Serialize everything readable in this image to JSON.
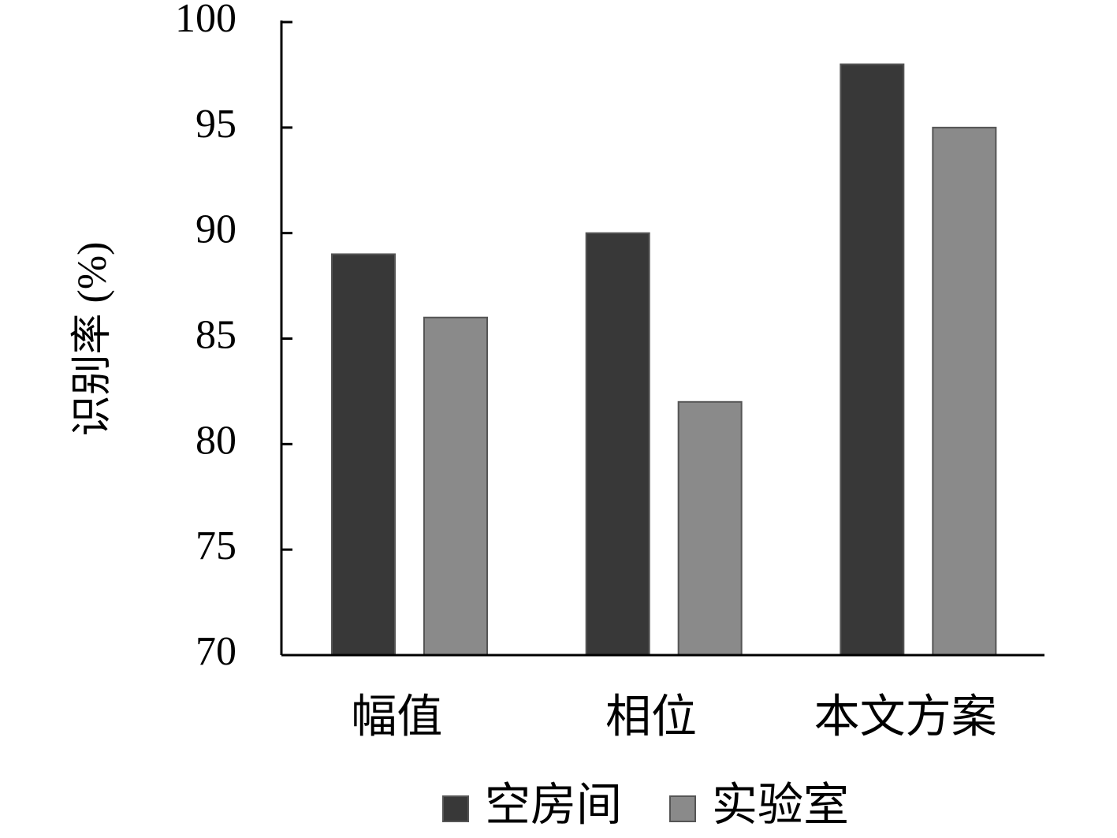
{
  "chart_data": {
    "type": "bar",
    "y_label": "识别率 (%)",
    "categories": [
      "幅值",
      "相位",
      "本文方案"
    ],
    "series": [
      {
        "name": "空房间",
        "color": "#383838",
        "values": [
          89,
          90,
          98
        ]
      },
      {
        "name": "实验室",
        "color": "#8a8a8a",
        "values": [
          86,
          82,
          95
        ]
      }
    ],
    "ylim": [
      70,
      100
    ],
    "yticks": [
      70,
      75,
      80,
      85,
      90,
      95,
      100
    ],
    "grid": false,
    "legend": "bottom"
  }
}
